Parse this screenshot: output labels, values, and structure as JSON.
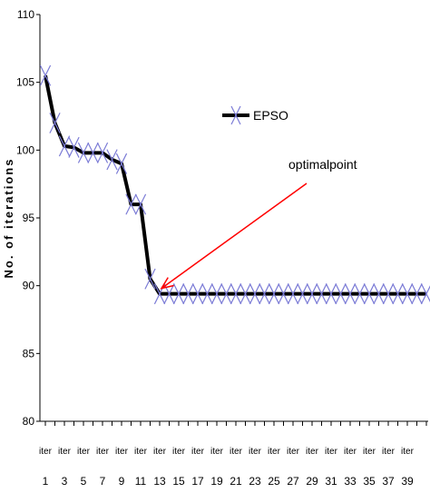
{
  "chart_data": {
    "type": "line",
    "title": "",
    "xlabel": "",
    "ylabel": "No. of iterations",
    "ylim": [
      80,
      110
    ],
    "yticks": [
      80,
      85,
      90,
      95,
      100,
      105,
      110
    ],
    "x": [
      1,
      2,
      3,
      4,
      5,
      6,
      7,
      8,
      9,
      10,
      11,
      12,
      13,
      14,
      15,
      16,
      17,
      18,
      19,
      20,
      21,
      22,
      23,
      24,
      25,
      26,
      27,
      28,
      29,
      30,
      31,
      32,
      33,
      34,
      35,
      36,
      37,
      38,
      39,
      40,
      41
    ],
    "xtick_prefix": "iter",
    "xtick_numbers": [
      1,
      3,
      5,
      7,
      9,
      11,
      13,
      15,
      17,
      19,
      21,
      23,
      25,
      27,
      29,
      31,
      33,
      35,
      37,
      39
    ],
    "series": [
      {
        "name": "EPSO",
        "color": "#000000",
        "marker": "x",
        "marker_color": "#7b7bd6",
        "values": [
          105.5,
          102,
          100.3,
          100.2,
          99.8,
          99.8,
          99.8,
          99.3,
          99.0,
          96.0,
          96.0,
          90.5,
          89.4,
          89.4,
          89.4,
          89.4,
          89.4,
          89.4,
          89.4,
          89.4,
          89.4,
          89.4,
          89.4,
          89.4,
          89.4,
          89.4,
          89.4,
          89.4,
          89.4,
          89.4,
          89.4,
          89.4,
          89.4,
          89.4,
          89.4,
          89.4,
          89.4,
          89.4,
          89.4,
          89.4,
          89.4
        ]
      }
    ],
    "legend": {
      "position": "top-right"
    },
    "annotation": {
      "text": "optimalpoint",
      "target_x": 13,
      "target_y": 89.4,
      "arrow_color": "#ff0000"
    },
    "grid": false
  }
}
